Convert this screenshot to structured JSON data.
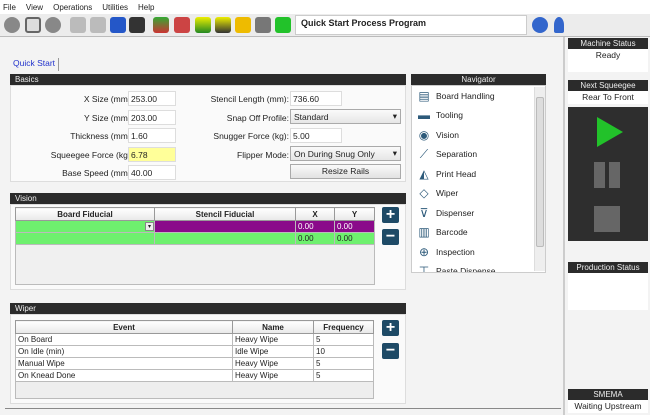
{
  "menu": [
    "File",
    "View",
    "Operations",
    "Utilities",
    "Help"
  ],
  "toolbar": {
    "title": "Quick Start Process Program",
    "icons": [
      "camera-icon",
      "stencil-icon",
      "back-icon",
      "edit-icon",
      "edit-doc-icon",
      "save-icon",
      "save-as-icon",
      "board-icon",
      "tooling-icon",
      "mountain-icon",
      "squeegee-icon",
      "warning-icon",
      "calculator-icon",
      "door-icon",
      "help-icon",
      "lightbulb-icon"
    ]
  },
  "tab": "Quick Start",
  "basics": {
    "header": "Basics",
    "left": [
      {
        "label": "X Size (mm):",
        "value": "253.00"
      },
      {
        "label": "Y Size (mm):",
        "value": "203.00"
      },
      {
        "label": "Thickness (mm):",
        "value": "1.60"
      },
      {
        "label": "Squeegee Force (kg):",
        "value": "6.78"
      },
      {
        "label": "Base Speed (mm):",
        "value": "40.00"
      }
    ],
    "stencil_length": {
      "label": "Stencil Length (mm):",
      "value": "736.60"
    },
    "snap_off": {
      "label": "Snap Off Profile:",
      "value": "Standard"
    },
    "snugger": {
      "label": "Snugger Force (kg):",
      "value": "5.00"
    },
    "flipper": {
      "label": "Flipper Mode:",
      "value": "On During Snug Only"
    },
    "resize_label": "Resize Rails"
  },
  "navigator": {
    "header": "Navigator",
    "items": [
      {
        "label": "Board Handling",
        "icon": "board-handling-icon"
      },
      {
        "label": "Tooling",
        "icon": "tooling-icon"
      },
      {
        "label": "Vision",
        "icon": "vision-icon"
      },
      {
        "label": "Separation",
        "icon": "separation-icon"
      },
      {
        "label": "Print Head",
        "icon": "print-head-icon"
      },
      {
        "label": "Wiper",
        "icon": "wiper-icon"
      },
      {
        "label": "Dispenser",
        "icon": "dispenser-icon"
      },
      {
        "label": "Barcode",
        "icon": "barcode-icon"
      },
      {
        "label": "Inspection",
        "icon": "inspection-icon"
      },
      {
        "label": "Paste Dispense",
        "icon": "paste-icon"
      }
    ]
  },
  "vision": {
    "header": "Vision",
    "columns": [
      "Board Fiducial",
      "Stencil Fiducial",
      "X",
      "Y"
    ],
    "rows": [
      [
        "",
        "",
        "0.00",
        "0.00"
      ],
      [
        "",
        "",
        "0.00",
        "0.00"
      ]
    ]
  },
  "wiper": {
    "header": "Wiper",
    "columns": [
      "Event",
      "Name",
      "Frequency"
    ],
    "rows": [
      [
        "On Board",
        "Heavy Wipe",
        "5"
      ],
      [
        "On Idle (min)",
        "Idle Wipe",
        "10"
      ],
      [
        "Manual Wipe",
        "Heavy Wipe",
        "5"
      ],
      [
        "On Knead Done",
        "Heavy Wipe",
        "5"
      ]
    ]
  },
  "status": {
    "machine_header": "Machine Status",
    "machine_value": "Ready",
    "squeegee_header": "Next Squeegee",
    "squeegee_value": "Rear To Front",
    "production_header": "Production Status",
    "smema_header": "SMEMA",
    "smema_value": "Waiting Upstream"
  },
  "colors": {
    "accent_green": "#22c22a",
    "row_green": "#6ef06e",
    "row_purple": "#8a0a8a",
    "highlight_yellow": "#ffff99",
    "header_dark": "#2b2b2b",
    "button_blue": "#1e4a66"
  }
}
